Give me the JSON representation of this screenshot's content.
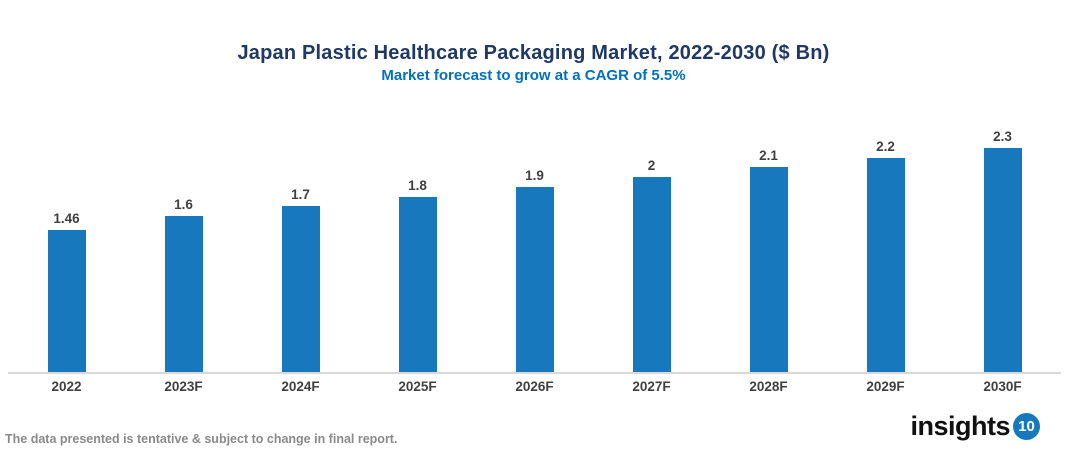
{
  "chart": {
    "title": "Japan Plastic Healthcare Packaging Market, 2022-2030 ($ Bn)",
    "subtitle": "Market forecast to grow at a CAGR of 5.5%"
  },
  "chart_data": {
    "type": "bar",
    "categories": [
      "2022",
      "2023F",
      "2024F",
      "2025F",
      "2026F",
      "2027F",
      "2028F",
      "2029F",
      "2030F"
    ],
    "values": [
      1.46,
      1.6,
      1.7,
      1.8,
      1.9,
      2,
      2.1,
      2.2,
      2.3
    ],
    "data_labels": [
      "1.46",
      "1.6",
      "1.7",
      "1.8",
      "1.9",
      "2",
      "2.1",
      "2.2",
      "2.3"
    ],
    "title": "Japan Plastic Healthcare Packaging Market, 2022-2030 ($ Bn)",
    "subtitle": "Market forecast to grow at a CAGR of 5.5%",
    "xlabel": "",
    "ylabel": "",
    "ylim": [
      0,
      2.5
    ],
    "grid": false,
    "legend": false,
    "bar_color": "#1878BE"
  },
  "footer": {
    "disclaimer": "The data presented is tentative & subject to change in final report.",
    "logo_text": "insights",
    "logo_badge": "10"
  },
  "colors": {
    "title": "#1F3864",
    "subtitle": "#0070C0",
    "bar": "#1878BE",
    "axis_line": "#D9D9D9",
    "value_label": "#404040",
    "category_label": "#404040",
    "disclaimer": "#8A8A8A",
    "logo_text": "#111111",
    "logo_badge_bg": "#1878BE",
    "logo_badge_text": "#FFFFFF"
  }
}
